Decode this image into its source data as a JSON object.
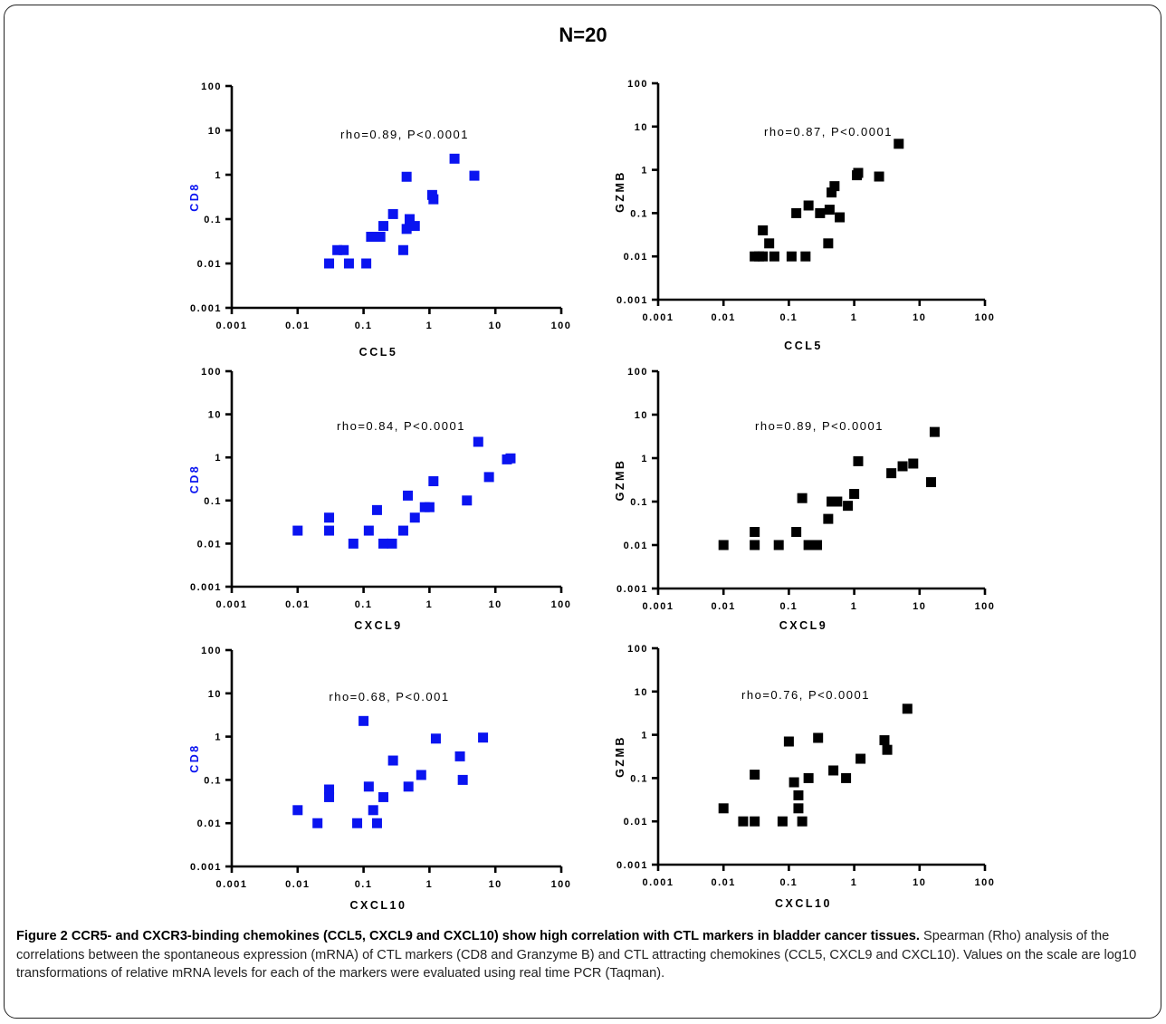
{
  "figure": {
    "title": "N=20",
    "caption_bold": "Figure 2 CCR5- and CXCR3-binding chemokines (CCL5, CXCL9 and CXCL10) show high correlation with CTL markers in bladder cancer tissues.",
    "caption_rest": " Spearman (Rho) analysis of the correlations between the spontaneous expression (mRNA) of CTL markers (CD8 and Granzyme B) and CTL attracting chemokines (CCL5, CXCL9 and CXCL10). Values on the scale are log10 transformations of relative mRNA levels for each of the markers were evaluated using real time PCR (Taqman)."
  },
  "colors": {
    "blue": "#0a14f0",
    "black": "#000000",
    "frame": "#222222"
  },
  "chart_data": [
    {
      "type": "scatter",
      "xlabel": "CCL5",
      "ylabel": "CD8",
      "ylabel_color": "#0a14f0",
      "marker_color": "#0a14f0",
      "annotation": "rho=0.89, P<0.0001",
      "xscale": "log",
      "yscale": "log",
      "xlim": [
        0.001,
        100
      ],
      "ylim": [
        0.001,
        100
      ],
      "x_ticks": [
        "0.001",
        "0.01",
        "0.1",
        "1",
        "10",
        "100"
      ],
      "y_ticks": [
        "0.001",
        "0.01",
        "0.1",
        "1",
        "10",
        "100"
      ],
      "points": [
        [
          0.03,
          0.01
        ],
        [
          0.04,
          0.02
        ],
        [
          0.05,
          0.02
        ],
        [
          0.06,
          0.01
        ],
        [
          0.11,
          0.01
        ],
        [
          0.13,
          0.04
        ],
        [
          0.18,
          0.04
        ],
        [
          0.2,
          0.07
        ],
        [
          0.28,
          0.13
        ],
        [
          0.4,
          0.02
        ],
        [
          0.45,
          0.06
        ],
        [
          0.5,
          0.1
        ],
        [
          0.6,
          0.07
        ],
        [
          1.1,
          0.35
        ],
        [
          1.15,
          0.28
        ],
        [
          0.45,
          0.9
        ],
        [
          2.4,
          2.3
        ],
        [
          4.8,
          0.95
        ]
      ]
    },
    {
      "type": "scatter",
      "xlabel": "CCL5",
      "ylabel": "GZMB",
      "ylabel_color": "#000000",
      "marker_color": "#000000",
      "annotation": "rho=0.87, P<0.0001",
      "xscale": "log",
      "yscale": "log",
      "xlim": [
        0.001,
        100
      ],
      "ylim": [
        0.001,
        100
      ],
      "x_ticks": [
        "0.001",
        "0.01",
        "0.1",
        "1",
        "10",
        "100"
      ],
      "y_ticks": [
        "0.001",
        "0.01",
        "0.1",
        "1",
        "10",
        "100"
      ],
      "points": [
        [
          0.03,
          0.01
        ],
        [
          0.035,
          0.01
        ],
        [
          0.04,
          0.01
        ],
        [
          0.04,
          0.04
        ],
        [
          0.05,
          0.02
        ],
        [
          0.06,
          0.01
        ],
        [
          0.11,
          0.01
        ],
        [
          0.13,
          0.1
        ],
        [
          0.18,
          0.01
        ],
        [
          0.2,
          0.15
        ],
        [
          0.3,
          0.1
        ],
        [
          0.4,
          0.02
        ],
        [
          0.42,
          0.12
        ],
        [
          0.45,
          0.3
        ],
        [
          0.5,
          0.42
        ],
        [
          0.6,
          0.08
        ],
        [
          1.1,
          0.75
        ],
        [
          1.15,
          0.85
        ],
        [
          2.4,
          0.7
        ],
        [
          4.8,
          4.0
        ]
      ]
    },
    {
      "type": "scatter",
      "xlabel": "CXCL9",
      "ylabel": "CD8",
      "ylabel_color": "#0a14f0",
      "marker_color": "#0a14f0",
      "annotation": "rho=0.84, P<0.0001",
      "xscale": "log",
      "yscale": "log",
      "xlim": [
        0.001,
        100
      ],
      "ylim": [
        0.001,
        100
      ],
      "x_ticks": [
        "0.001",
        "0.01",
        "0.1",
        "1",
        "10",
        "100"
      ],
      "y_ticks": [
        "0.001",
        "0.01",
        "0.1",
        "1",
        "10",
        "100"
      ],
      "points": [
        [
          0.01,
          0.02
        ],
        [
          0.03,
          0.02
        ],
        [
          0.03,
          0.04
        ],
        [
          0.07,
          0.01
        ],
        [
          0.12,
          0.02
        ],
        [
          0.16,
          0.06
        ],
        [
          0.2,
          0.01
        ],
        [
          0.27,
          0.01
        ],
        [
          0.4,
          0.02
        ],
        [
          0.47,
          0.13
        ],
        [
          0.6,
          0.04
        ],
        [
          0.85,
          0.07
        ],
        [
          1.0,
          0.07
        ],
        [
          1.15,
          0.28
        ],
        [
          3.7,
          0.1
        ],
        [
          5.5,
          2.3
        ],
        [
          8.0,
          0.35
        ],
        [
          15,
          0.9
        ],
        [
          17,
          0.95
        ]
      ]
    },
    {
      "type": "scatter",
      "xlabel": "CXCL9",
      "ylabel": "GZMB",
      "ylabel_color": "#000000",
      "marker_color": "#000000",
      "annotation": "rho=0.89, P<0.0001",
      "xscale": "log",
      "yscale": "log",
      "xlim": [
        0.001,
        100
      ],
      "ylim": [
        0.001,
        100
      ],
      "x_ticks": [
        "0.001",
        "0.01",
        "0.1",
        "1",
        "10",
        "100"
      ],
      "y_ticks": [
        "0.001",
        "0.01",
        "0.1",
        "1",
        "10",
        "100"
      ],
      "points": [
        [
          0.01,
          0.01
        ],
        [
          0.03,
          0.01
        ],
        [
          0.03,
          0.02
        ],
        [
          0.07,
          0.01
        ],
        [
          0.13,
          0.02
        ],
        [
          0.16,
          0.12
        ],
        [
          0.2,
          0.01
        ],
        [
          0.27,
          0.01
        ],
        [
          0.4,
          0.04
        ],
        [
          0.45,
          0.1
        ],
        [
          0.55,
          0.1
        ],
        [
          0.8,
          0.08
        ],
        [
          1.0,
          0.15
        ],
        [
          1.15,
          0.85
        ],
        [
          3.7,
          0.45
        ],
        [
          5.5,
          0.65
        ],
        [
          8.0,
          0.75
        ],
        [
          15,
          0.28
        ],
        [
          17,
          4.0
        ]
      ]
    },
    {
      "type": "scatter",
      "xlabel": "CXCL10",
      "ylabel": "CD8",
      "ylabel_color": "#0a14f0",
      "marker_color": "#0a14f0",
      "annotation": "rho=0.68, P<0.001",
      "xscale": "log",
      "yscale": "log",
      "xlim": [
        0.001,
        100
      ],
      "ylim": [
        0.001,
        100
      ],
      "x_ticks": [
        "0.001",
        "0.01",
        "0.1",
        "1",
        "10",
        "100"
      ],
      "y_ticks": [
        "0.001",
        "0.01",
        "0.1",
        "1",
        "10",
        "100"
      ],
      "points": [
        [
          0.01,
          0.02
        ],
        [
          0.02,
          0.01
        ],
        [
          0.03,
          0.04
        ],
        [
          0.03,
          0.06
        ],
        [
          0.08,
          0.01
        ],
        [
          0.1,
          2.3
        ],
        [
          0.12,
          0.07
        ],
        [
          0.14,
          0.02
        ],
        [
          0.16,
          0.01
        ],
        [
          0.2,
          0.04
        ],
        [
          0.28,
          0.28
        ],
        [
          0.48,
          0.07
        ],
        [
          0.75,
          0.13
        ],
        [
          1.25,
          0.9
        ],
        [
          2.9,
          0.35
        ],
        [
          3.2,
          0.1
        ],
        [
          6.5,
          0.95
        ]
      ]
    },
    {
      "type": "scatter",
      "xlabel": "CXCL10",
      "ylabel": "GZMB",
      "ylabel_color": "#000000",
      "marker_color": "#000000",
      "annotation": "rho=0.76, P<0.0001",
      "xscale": "log",
      "yscale": "log",
      "xlim": [
        0.001,
        100
      ],
      "ylim": [
        0.001,
        100
      ],
      "x_ticks": [
        "0.001",
        "0.01",
        "0.1",
        "1",
        "10",
        "100"
      ],
      "y_ticks": [
        "0.001",
        "0.01",
        "0.1",
        "1",
        "10",
        "100"
      ],
      "points": [
        [
          0.01,
          0.02
        ],
        [
          0.02,
          0.01
        ],
        [
          0.03,
          0.01
        ],
        [
          0.03,
          0.12
        ],
        [
          0.08,
          0.01
        ],
        [
          0.1,
          0.7
        ],
        [
          0.12,
          0.08
        ],
        [
          0.14,
          0.04
        ],
        [
          0.14,
          0.02
        ],
        [
          0.16,
          0.01
        ],
        [
          0.2,
          0.1
        ],
        [
          0.28,
          0.85
        ],
        [
          0.48,
          0.15
        ],
        [
          0.75,
          0.1
        ],
        [
          1.25,
          0.28
        ],
        [
          2.9,
          0.75
        ],
        [
          3.2,
          0.45
        ],
        [
          6.5,
          4.0
        ]
      ]
    }
  ]
}
